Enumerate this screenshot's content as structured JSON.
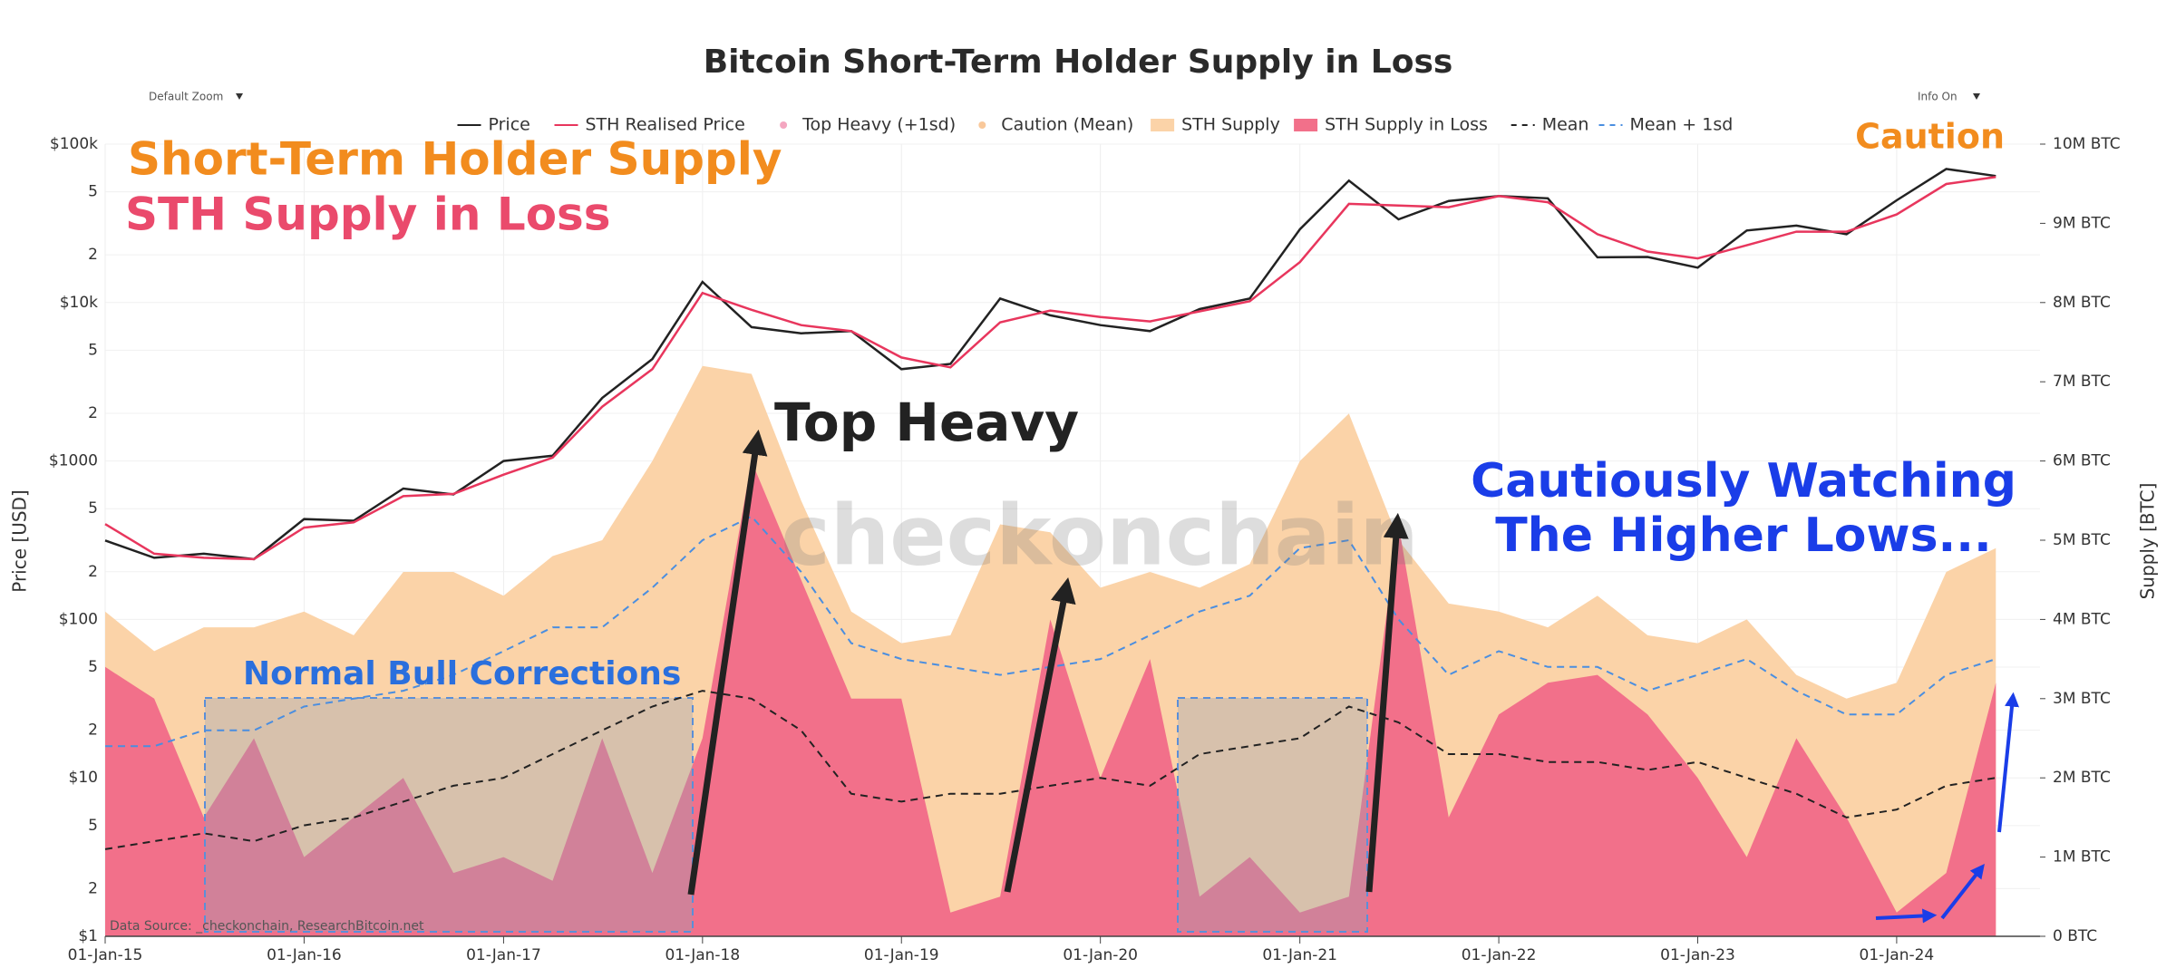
{
  "chart_data": {
    "type": "line",
    "title": "Bitcoin Short-Term Holder Supply in Loss",
    "controls": {
      "zoom": "Default Zoom",
      "info": "Info On"
    },
    "ylabel": "Price [USD]",
    "y2label": "Supply [BTC]",
    "source": "Data Source: _checkonchain, ResearchBitcoin.net",
    "watermark": "checkonchain",
    "annotations": {
      "sth_supply": "Short-Term Holder Supply",
      "sth_loss": "STH Supply in Loss",
      "caution": "Caution",
      "top_heavy": "Top Heavy",
      "watching_1": "Cautiously Watching",
      "watching_2": "The Higher Lows...",
      "corrections": "Normal Bull Corrections"
    },
    "log_y": true,
    "grid": true,
    "xlim": [
      "2015-01-01",
      "2024-09-20"
    ],
    "xticks": [
      {
        "value": "2015-01-01",
        "label": "01-Jan-15"
      },
      {
        "value": "2016-01-01",
        "label": "01-Jan-16"
      },
      {
        "value": "2017-01-01",
        "label": "01-Jan-17"
      },
      {
        "value": "2018-01-01",
        "label": "01-Jan-18"
      },
      {
        "value": "2019-01-01",
        "label": "01-Jan-19"
      },
      {
        "value": "2020-01-01",
        "label": "01-Jan-20"
      },
      {
        "value": "2021-01-01",
        "label": "01-Jan-21"
      },
      {
        "value": "2022-01-01",
        "label": "01-Jan-22"
      },
      {
        "value": "2023-01-01",
        "label": "01-Jan-23"
      },
      {
        "value": "2024-01-01",
        "label": "01-Jan-24"
      }
    ],
    "ylim": [
      1,
      100000
    ],
    "yticks": [
      {
        "value": 1,
        "label": "$1"
      },
      2,
      5,
      {
        "value": 10,
        "label": "$10"
      },
      {
        "value": 20,
        "label": "2"
      },
      {
        "value": 50,
        "label": "5"
      },
      {
        "value": 100,
        "label": "$100"
      },
      {
        "value": 200,
        "label": "2"
      },
      {
        "value": 500,
        "label": "5"
      },
      {
        "value": 1000,
        "label": "$1000"
      },
      {
        "value": 2000,
        "label": "2"
      },
      {
        "value": 5000,
        "label": "5"
      },
      {
        "value": 10000,
        "label": "$10k"
      },
      {
        "value": 20000,
        "label": "2"
      },
      {
        "value": 50000,
        "label": "5"
      },
      {
        "value": 100000,
        "label": "$100k"
      }
    ],
    "y2lim": [
      0,
      10000000
    ],
    "y2ticks": [
      {
        "value": 0,
        "label": "0 BTC"
      },
      {
        "value": 1000000,
        "label": "1M BTC"
      },
      {
        "value": 2000000,
        "label": "2M BTC"
      },
      {
        "value": 3000000,
        "label": "3M BTC"
      },
      {
        "value": 4000000,
        "label": "4M BTC"
      },
      {
        "value": 5000000,
        "label": "5M BTC"
      },
      {
        "value": 6000000,
        "label": "6M BTC"
      },
      {
        "value": 7000000,
        "label": "7M BTC"
      },
      {
        "value": 8000000,
        "label": "8M BTC"
      },
      {
        "value": 9000000,
        "label": "9M BTC"
      },
      {
        "value": 10000000,
        "label": "10M BTC"
      }
    ],
    "x": [
      "2015-01-01",
      "2015-04-01",
      "2015-07-01",
      "2015-10-01",
      "2016-01-01",
      "2016-04-01",
      "2016-07-01",
      "2016-10-01",
      "2017-01-01",
      "2017-04-01",
      "2017-07-01",
      "2017-10-01",
      "2018-01-01",
      "2018-04-01",
      "2018-07-01",
      "2018-10-01",
      "2019-01-01",
      "2019-04-01",
      "2019-07-01",
      "2019-10-01",
      "2020-01-01",
      "2020-04-01",
      "2020-07-01",
      "2020-10-01",
      "2021-01-01",
      "2021-04-01",
      "2021-07-01",
      "2021-10-01",
      "2022-01-01",
      "2022-04-01",
      "2022-07-01",
      "2022-10-01",
      "2023-01-01",
      "2023-04-01",
      "2023-07-01",
      "2023-10-01",
      "2024-01-01",
      "2024-04-01",
      "2024-07-01"
    ],
    "markers": [
      {
        "name": "Top Heavy (+1sd)",
        "color": "#f4a6c0"
      },
      {
        "name": "Caution (Mean)",
        "color": "#f9c89a"
      }
    ],
    "series": [
      {
        "name": "Price",
        "color": "#222222",
        "kind": "line",
        "axis": "y",
        "values": [
          315,
          245,
          260,
          240,
          430,
          420,
          670,
          615,
          1000,
          1080,
          2500,
          4400,
          13500,
          7000,
          6400,
          6600,
          3800,
          4100,
          10600,
          8300,
          7200,
          6600,
          9100,
          10600,
          29000,
          58800,
          33500,
          43800,
          47000,
          45500,
          19300,
          19400,
          16600,
          28500,
          30600,
          27000,
          44200,
          69700,
          62900
        ]
      },
      {
        "name": "STH Realised Price",
        "color": "#e8365d",
        "kind": "line",
        "axis": "y",
        "values": [
          400,
          260,
          245,
          240,
          380,
          410,
          600,
          620,
          820,
          1050,
          2200,
          3800,
          11500,
          9000,
          7200,
          6600,
          4500,
          3900,
          7500,
          8900,
          8100,
          7600,
          8800,
          10200,
          18000,
          42000,
          41000,
          40000,
          47000,
          43000,
          27000,
          21000,
          19000,
          23000,
          28000,
          28000,
          36000,
          56000,
          62000
        ]
      },
      {
        "name": "STH Supply",
        "color": "#fbd3a8",
        "kind": "area",
        "axis": "y2",
        "values": [
          4100000,
          3600000,
          3900000,
          3900000,
          4100000,
          3800000,
          4600000,
          4600000,
          4300000,
          4800000,
          5000000,
          6000000,
          7200000,
          7100000,
          5500000,
          4100000,
          3700000,
          3800000,
          5200000,
          5100000,
          4400000,
          4600000,
          4400000,
          4700000,
          6000000,
          6600000,
          5000000,
          4200000,
          4100000,
          3900000,
          4300000,
          3800000,
          3700000,
          4000000,
          3300000,
          3000000,
          3200000,
          4600000,
          4900000
        ]
      },
      {
        "name": "STH Supply in Loss",
        "color": "#f2708a",
        "kind": "area",
        "axis": "y2",
        "values": [
          3400000,
          3000000,
          1500000,
          2500000,
          1000000,
          1500000,
          2000000,
          800000,
          1000000,
          700000,
          2500000,
          800000,
          2500000,
          6000000,
          4500000,
          3000000,
          3000000,
          300000,
          500000,
          4000000,
          2000000,
          3500000,
          500000,
          1000000,
          300000,
          500000,
          5200000,
          1500000,
          2800000,
          3200000,
          3300000,
          2800000,
          2000000,
          1000000,
          2500000,
          1500000,
          300000,
          800000,
          3200000
        ]
      },
      {
        "name": "Mean",
        "color": "#222222",
        "kind": "dash",
        "axis": "y2",
        "values": [
          1100000,
          1200000,
          1300000,
          1200000,
          1400000,
          1500000,
          1700000,
          1900000,
          2000000,
          2300000,
          2600000,
          2900000,
          3100000,
          3000000,
          2600000,
          1800000,
          1700000,
          1800000,
          1800000,
          1900000,
          2000000,
          1900000,
          2300000,
          2400000,
          2500000,
          2900000,
          2700000,
          2300000,
          2300000,
          2200000,
          2200000,
          2100000,
          2200000,
          2000000,
          1800000,
          1500000,
          1600000,
          1900000,
          2000000
        ]
      },
      {
        "name": "Mean + 1sd",
        "color": "#4a8ee0",
        "kind": "dash",
        "axis": "y2",
        "values": [
          2400000,
          2400000,
          2600000,
          2600000,
          2900000,
          3000000,
          3100000,
          3300000,
          3600000,
          3900000,
          3900000,
          4400000,
          5000000,
          5300000,
          4600000,
          3700000,
          3500000,
          3400000,
          3300000,
          3400000,
          3500000,
          3800000,
          4100000,
          4300000,
          4900000,
          5000000,
          4000000,
          3300000,
          3600000,
          3400000,
          3400000,
          3100000,
          3300000,
          3500000,
          3100000,
          2800000,
          2800000,
          3300000,
          3500000
        ]
      }
    ]
  }
}
